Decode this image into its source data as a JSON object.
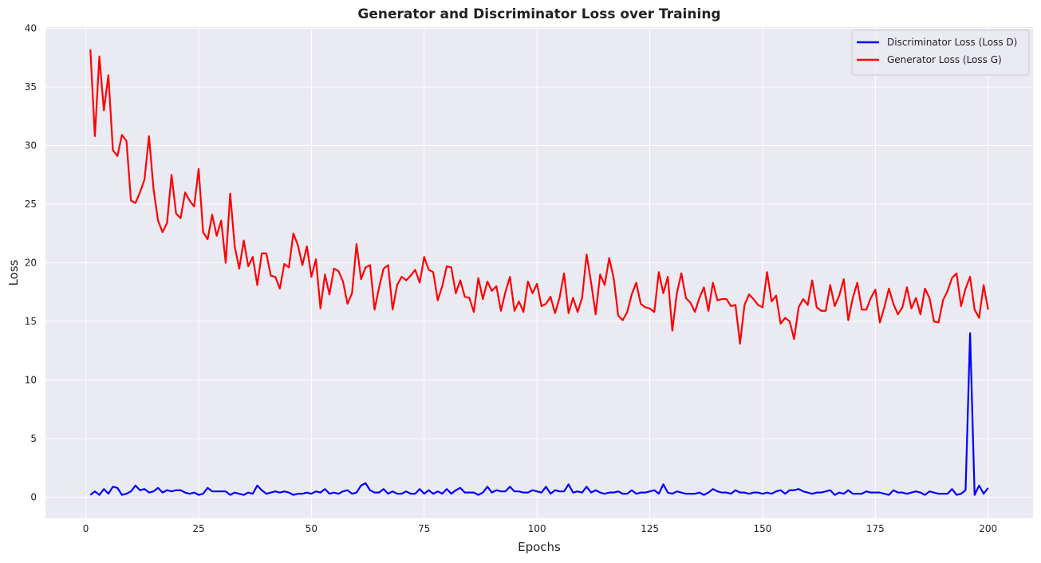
{
  "chart_data": {
    "type": "line",
    "title": "Generator and Discriminator Loss over Training",
    "x_label": "Epochs",
    "y_label": "Loss",
    "x": [
      1,
      2,
      3,
      4,
      5,
      6,
      7,
      8,
      9,
      10,
      11,
      12,
      13,
      14,
      15,
      16,
      17,
      18,
      19,
      20,
      21,
      22,
      23,
      24,
      25,
      26,
      27,
      28,
      29,
      30,
      31,
      32,
      33,
      34,
      35,
      36,
      37,
      38,
      39,
      40,
      41,
      42,
      43,
      44,
      45,
      46,
      47,
      48,
      49,
      50,
      51,
      52,
      53,
      54,
      55,
      56,
      57,
      58,
      59,
      60,
      61,
      62,
      63,
      64,
      65,
      66,
      67,
      68,
      69,
      70,
      71,
      72,
      73,
      74,
      75,
      76,
      77,
      78,
      79,
      80,
      81,
      82,
      83,
      84,
      85,
      86,
      87,
      88,
      89,
      90,
      91,
      92,
      93,
      94,
      95,
      96,
      97,
      98,
      99,
      100,
      101,
      102,
      103,
      104,
      105,
      106,
      107,
      108,
      109,
      110,
      111,
      112,
      113,
      114,
      115,
      116,
      117,
      118,
      119,
      120,
      121,
      122,
      123,
      124,
      125,
      126,
      127,
      128,
      129,
      130,
      131,
      132,
      133,
      134,
      135,
      136,
      137,
      138,
      139,
      140,
      141,
      142,
      143,
      144,
      145,
      146,
      147,
      148,
      149,
      150,
      151,
      152,
      153,
      154,
      155,
      156,
      157,
      158,
      159,
      160,
      161,
      162,
      163,
      164,
      165,
      166,
      167,
      168,
      169,
      170,
      171,
      172,
      173,
      174,
      175,
      176,
      177,
      178,
      179,
      180,
      181,
      182,
      183,
      184,
      185,
      186,
      187,
      188,
      189,
      190,
      191,
      192,
      193,
      194,
      195,
      196,
      197,
      198,
      199,
      200
    ],
    "series": [
      {
        "name": "Discriminator Loss (Loss D)",
        "color": "#0000ff",
        "values": [
          0.2,
          0.5,
          0.2,
          0.7,
          0.3,
          0.9,
          0.8,
          0.2,
          0.3,
          0.5,
          1.0,
          0.6,
          0.7,
          0.4,
          0.5,
          0.8,
          0.4,
          0.6,
          0.5,
          0.6,
          0.6,
          0.4,
          0.3,
          0.4,
          0.2,
          0.3,
          0.8,
          0.5,
          0.5,
          0.5,
          0.5,
          0.2,
          0.4,
          0.3,
          0.2,
          0.4,
          0.3,
          1.0,
          0.6,
          0.3,
          0.4,
          0.5,
          0.4,
          0.5,
          0.4,
          0.2,
          0.3,
          0.3,
          0.4,
          0.3,
          0.5,
          0.4,
          0.7,
          0.3,
          0.4,
          0.3,
          0.5,
          0.6,
          0.3,
          0.4,
          1.0,
          1.2,
          0.6,
          0.4,
          0.4,
          0.7,
          0.3,
          0.5,
          0.3,
          0.3,
          0.5,
          0.3,
          0.3,
          0.7,
          0.3,
          0.6,
          0.3,
          0.5,
          0.3,
          0.7,
          0.3,
          0.6,
          0.8,
          0.4,
          0.4,
          0.4,
          0.2,
          0.4,
          0.9,
          0.4,
          0.6,
          0.5,
          0.5,
          0.9,
          0.5,
          0.5,
          0.4,
          0.4,
          0.6,
          0.5,
          0.4,
          0.9,
          0.3,
          0.6,
          0.5,
          0.5,
          1.1,
          0.4,
          0.5,
          0.4,
          0.9,
          0.4,
          0.6,
          0.4,
          0.3,
          0.4,
          0.4,
          0.5,
          0.3,
          0.3,
          0.6,
          0.3,
          0.4,
          0.4,
          0.5,
          0.6,
          0.3,
          1.1,
          0.4,
          0.3,
          0.5,
          0.4,
          0.3,
          0.3,
          0.3,
          0.4,
          0.2,
          0.4,
          0.7,
          0.5,
          0.4,
          0.4,
          0.3,
          0.6,
          0.4,
          0.4,
          0.3,
          0.4,
          0.4,
          0.3,
          0.4,
          0.3,
          0.5,
          0.6,
          0.3,
          0.6,
          0.6,
          0.7,
          0.5,
          0.4,
          0.3,
          0.4,
          0.4,
          0.5,
          0.6,
          0.2,
          0.4,
          0.3,
          0.6,
          0.3,
          0.3,
          0.3,
          0.5,
          0.4,
          0.4,
          0.4,
          0.3,
          0.2,
          0.6,
          0.4,
          0.4,
          0.3,
          0.4,
          0.5,
          0.4,
          0.2,
          0.5,
          0.4,
          0.3,
          0.3,
          0.3,
          0.7,
          0.2,
          0.3,
          0.6,
          14.0,
          0.2,
          1.0,
          0.3,
          0.8
        ]
      },
      {
        "name": "Generator Loss (Loss G)",
        "color": "#ff0000",
        "values": [
          38.2,
          30.8,
          37.6,
          33.0,
          36.0,
          29.6,
          29.1,
          30.9,
          30.4,
          25.3,
          25.1,
          26.0,
          27.1,
          30.8,
          26.3,
          23.6,
          22.6,
          23.4,
          27.5,
          24.2,
          23.8,
          26.0,
          25.3,
          24.8,
          28.0,
          22.6,
          22.0,
          24.1,
          22.3,
          23.6,
          20.0,
          25.9,
          21.4,
          19.5,
          21.9,
          19.7,
          20.5,
          18.1,
          20.8,
          20.8,
          18.9,
          18.8,
          17.8,
          19.9,
          19.6,
          22.5,
          21.5,
          19.8,
          21.4,
          18.8,
          20.3,
          16.1,
          19.0,
          17.3,
          19.5,
          19.3,
          18.4,
          16.5,
          17.4,
          21.6,
          18.6,
          19.6,
          19.8,
          16.0,
          17.9,
          19.5,
          19.8,
          16.0,
          18.1,
          18.8,
          18.5,
          18.9,
          19.4,
          18.3,
          20.5,
          19.4,
          19.2,
          16.8,
          18.0,
          19.7,
          19.6,
          17.4,
          18.5,
          17.1,
          17.0,
          15.8,
          18.7,
          16.9,
          18.4,
          17.6,
          18.0,
          15.9,
          17.5,
          18.8,
          15.9,
          16.7,
          15.8,
          18.4,
          17.4,
          18.2,
          16.3,
          16.5,
          17.1,
          15.7,
          17.0,
          19.1,
          15.7,
          17.0,
          15.8,
          17.0,
          20.7,
          18.3,
          15.6,
          19.0,
          18.1,
          20.4,
          18.7,
          15.5,
          15.1,
          15.8,
          17.3,
          18.3,
          16.5,
          16.2,
          16.1,
          15.8,
          19.2,
          17.4,
          18.8,
          14.2,
          17.4,
          19.1,
          17.0,
          16.6,
          15.8,
          17.0,
          17.9,
          15.9,
          18.3,
          16.8,
          16.9,
          16.9,
          16.3,
          16.4,
          13.1,
          16.4,
          17.3,
          16.9,
          16.4,
          16.2,
          19.2,
          16.7,
          17.2,
          14.8,
          15.3,
          15.0,
          13.5,
          16.2,
          16.9,
          16.4,
          18.5,
          16.2,
          15.9,
          15.9,
          18.1,
          16.3,
          17.2,
          18.6,
          15.1,
          17.0,
          18.3,
          16.0,
          16.0,
          17.0,
          17.7,
          14.9,
          16.2,
          17.8,
          16.5,
          15.6,
          16.2,
          17.9,
          16.1,
          17.0,
          15.6,
          17.8,
          17.0,
          15.0,
          14.9,
          16.8,
          17.6,
          18.7,
          19.1,
          16.3,
          17.8,
          18.8,
          16.0,
          15.3,
          18.1,
          16.0
        ]
      }
    ],
    "xlim": [
      -8.95,
      209.95
    ],
    "xticks": [
      0,
      25,
      50,
      75,
      100,
      125,
      150,
      175,
      200
    ],
    "ylim": [
      -1.8,
      40.1
    ],
    "yticks": [
      0,
      5,
      10,
      15,
      20,
      25,
      30,
      35,
      40
    ],
    "grid": true,
    "legend": "upper right"
  }
}
